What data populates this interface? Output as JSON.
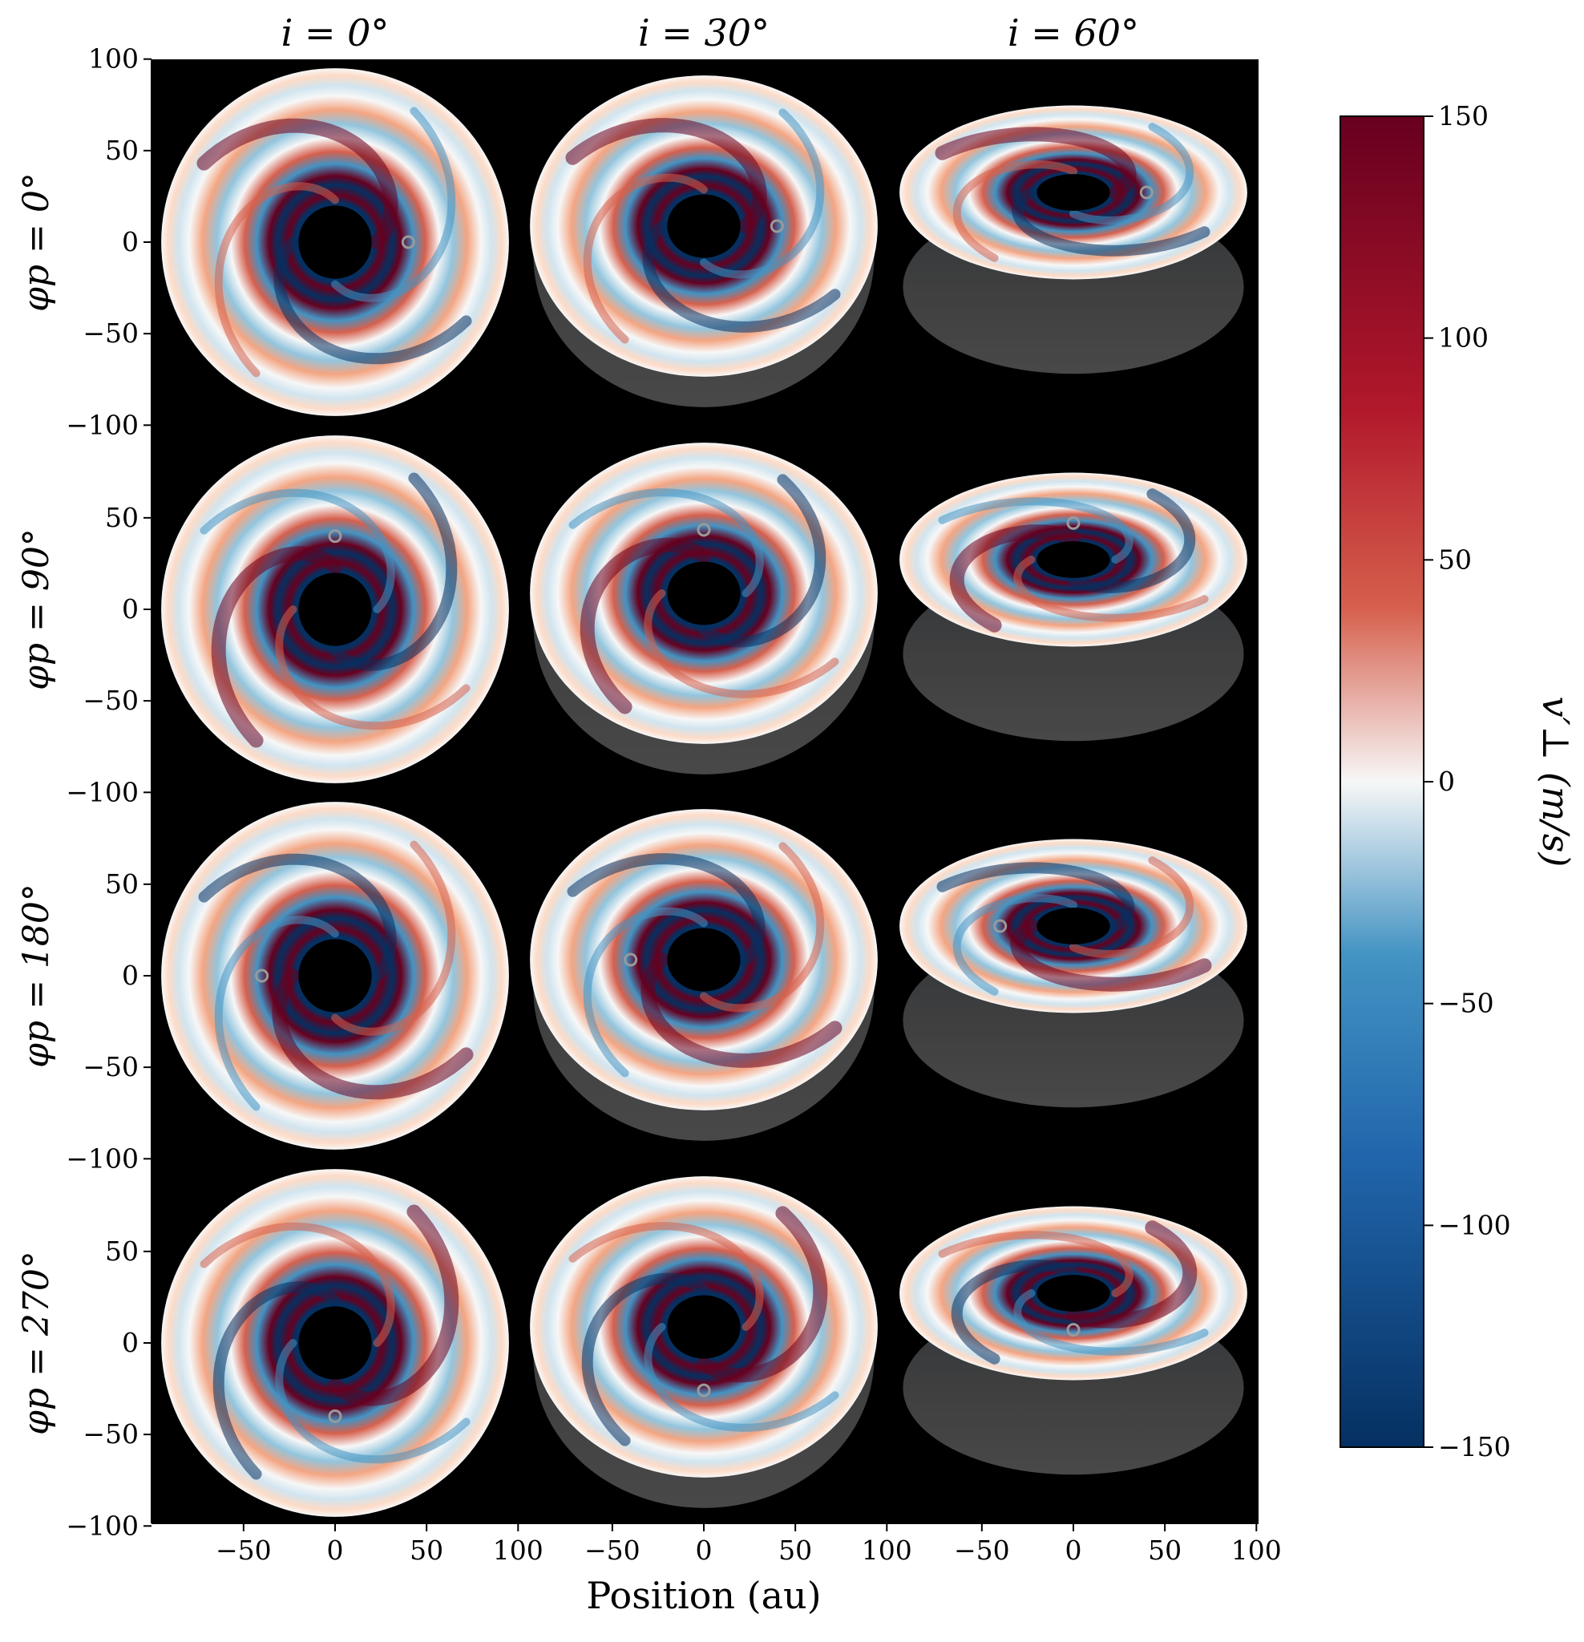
{
  "chart_data": {
    "type": "heatmap",
    "description_grid": "4 rows x 3 columns of disk velocity-perturbation maps",
    "column_titles": [
      "i = 0°",
      "i = 30°",
      "i = 60°"
    ],
    "column_inclinations_deg": [
      0,
      30,
      60
    ],
    "row_labels": [
      "φp = 0°",
      "φp = 90°",
      "φp = 180°",
      "φp = 270°"
    ],
    "row_planet_angles_deg": [
      0,
      90,
      180,
      270
    ],
    "xlabel": "Position (au)",
    "ylabel": "",
    "x_ticks": [
      "−50",
      "0",
      "50",
      "100"
    ],
    "x_tick_values": [
      -50,
      0,
      50,
      100
    ],
    "y_ticks": [
      "100",
      "50",
      "0",
      "−50",
      "−100"
    ],
    "y_tick_values": [
      100,
      50,
      0,
      -50,
      -100
    ],
    "xlim": [
      -100,
      100
    ],
    "ylim": [
      -100,
      100
    ],
    "background": "#000000",
    "disk_outer_radius_au": 95,
    "disk_inner_radius_au": 20,
    "planet_radius_au": 40,
    "colorbar": {
      "label": "v′⊥ (m/s)",
      "cmap": "RdBu_r",
      "min": -150,
      "max": 150,
      "ticks": [
        "150",
        "100",
        "50",
        "0",
        "−50",
        "−100",
        "−150"
      ],
      "tick_values": [
        150,
        100,
        50,
        0,
        -50,
        -100,
        -150
      ],
      "colors": {
        "high": "#67001f",
        "mid_high": "#d6604d",
        "zero": "#f7f7f7",
        "mid_low": "#4393c3",
        "low": "#053061"
      }
    }
  }
}
